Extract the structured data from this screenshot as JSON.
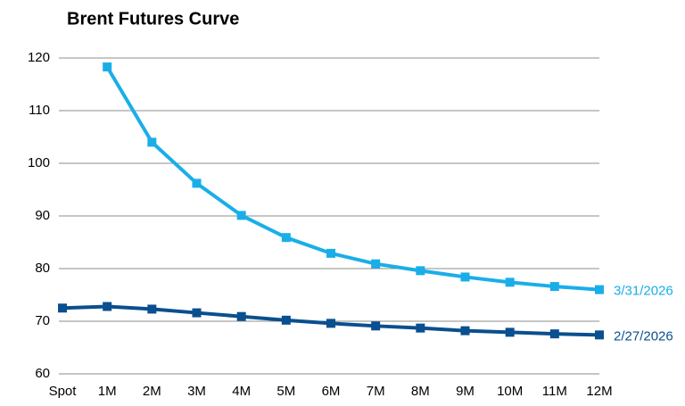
{
  "chart_data": {
    "type": "line",
    "title": "Brent Futures Curve",
    "categories": [
      "Spot",
      "1M",
      "2M",
      "3M",
      "4M",
      "5M",
      "6M",
      "7M",
      "8M",
      "9M",
      "10M",
      "11M",
      "12M"
    ],
    "series": [
      {
        "name": "3/31/2026",
        "color": "#1aaee8",
        "values": [
          null,
          118.3,
          104.0,
          96.2,
          90.1,
          85.9,
          82.9,
          80.9,
          79.6,
          78.4,
          77.4,
          76.6,
          76.0
        ]
      },
      {
        "name": "2/27/2026",
        "color": "#0a4f8f",
        "values": [
          72.5,
          72.8,
          72.3,
          71.6,
          70.9,
          70.2,
          69.6,
          69.1,
          68.7,
          68.2,
          67.9,
          67.6,
          67.4
        ]
      }
    ],
    "ylim": [
      60,
      120
    ],
    "yticks": [
      60,
      70,
      80,
      90,
      100,
      110,
      120
    ],
    "grid": true
  }
}
